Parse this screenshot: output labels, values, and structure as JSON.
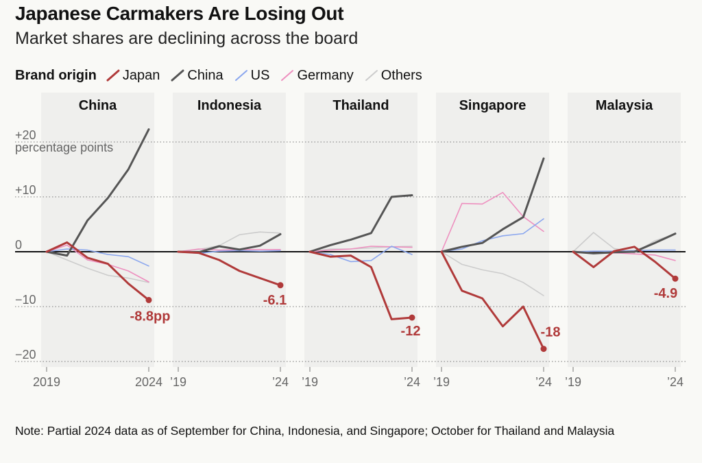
{
  "title": "Japanese Carmakers Are Losing Out",
  "subtitle": "Market shares are declining across the board",
  "legend": {
    "title": "Brand origin",
    "items": [
      {
        "name": "Japan",
        "color": "#b03a3a"
      },
      {
        "name": "China",
        "color": "#555555"
      },
      {
        "name": "US",
        "color": "#8aa6ee"
      },
      {
        "name": "Germany",
        "color": "#ee8fbf"
      },
      {
        "name": "Others",
        "color": "#cccccc"
      }
    ]
  },
  "note": "Note: Partial 2024 data as of September for China, Indonesia, and Singapore; October for Thailand and Malaysia",
  "chart_data": {
    "type": "line",
    "x": [
      "2019",
      "2020",
      "2021",
      "2022",
      "2023",
      "2024"
    ],
    "ylim": [
      -21,
      24
    ],
    "yticks": [
      {
        "value": 20,
        "label": "+20"
      },
      {
        "value": 10,
        "label": "+10"
      },
      {
        "value": 0,
        "label": "0"
      },
      {
        "value": -10,
        "label": "−10"
      },
      {
        "value": -20,
        "label": "−20"
      }
    ],
    "y_unit_label": "percentage points",
    "colors": {
      "Japan": "#b03a3a",
      "China": "#555555",
      "US": "#8aa6ee",
      "Germany": "#ee8fbf",
      "Others": "#cccccc"
    },
    "panels": [
      {
        "name": "China",
        "x_labels": [
          "2019",
          "2024"
        ],
        "end_label": "-8.8pp",
        "series": [
          {
            "name": "Others",
            "values": [
              0,
              -1.5,
              -3,
              -4.3,
              -4.8,
              -5.6
            ]
          },
          {
            "name": "Germany",
            "values": [
              0,
              1.2,
              -1.5,
              -2.3,
              -3.5,
              -5.5
            ]
          },
          {
            "name": "US",
            "values": [
              0,
              0.5,
              0.3,
              -0.5,
              -0.9,
              -2.6
            ]
          },
          {
            "name": "China",
            "values": [
              0,
              -0.7,
              5.7,
              9.8,
              15,
              22.3
            ]
          },
          {
            "name": "Japan",
            "values": [
              0,
              1.7,
              -1.1,
              -2.2,
              -5.8,
              -8.8
            ]
          }
        ]
      },
      {
        "name": "Indonesia",
        "x_labels": [
          "’19",
          "’24"
        ],
        "end_label": "-6.1",
        "series": [
          {
            "name": "Others",
            "values": [
              0,
              0.4,
              1.1,
              3.1,
              3.6,
              3.4
            ]
          },
          {
            "name": "Germany",
            "values": [
              0,
              0.5,
              0.3,
              0.4,
              0.4,
              0.4
            ]
          },
          {
            "name": "US",
            "values": [
              0,
              -0.3,
              0.1,
              0.2,
              0.1,
              0.2
            ]
          },
          {
            "name": "China",
            "values": [
              0,
              -0.1,
              1,
              0.4,
              1.1,
              3.2
            ]
          },
          {
            "name": "Japan",
            "values": [
              0,
              -0.2,
              -1.5,
              -3.5,
              -4.8,
              -6.1
            ]
          }
        ]
      },
      {
        "name": "Thailand",
        "x_labels": [
          "’19",
          "’24"
        ],
        "end_label": "-12",
        "series": [
          {
            "name": "Others",
            "values": [
              0,
              0.5,
              0.5,
              0.7,
              0.9,
              1
            ]
          },
          {
            "name": "Germany",
            "values": [
              0,
              0.3,
              0.5,
              1,
              0.9,
              0.8
            ]
          },
          {
            "name": "US",
            "values": [
              0,
              -0.5,
              -1.8,
              -1.6,
              1,
              -0.5
            ]
          },
          {
            "name": "China",
            "values": [
              0,
              1.2,
              2.2,
              3.4,
              10,
              10.3
            ]
          },
          {
            "name": "Japan",
            "values": [
              0,
              -0.9,
              -0.7,
              -2.8,
              -12.3,
              -12
            ]
          }
        ]
      },
      {
        "name": "Singapore",
        "x_labels": [
          "’19",
          "’24"
        ],
        "end_label": "-18",
        "series": [
          {
            "name": "Others",
            "values": [
              0,
              -2.3,
              -3.3,
              -4,
              -5.6,
              -8
            ]
          },
          {
            "name": "Germany",
            "values": [
              0,
              8.8,
              8.7,
              10.8,
              6.4,
              3.7
            ]
          },
          {
            "name": "US",
            "values": [
              0,
              0.5,
              2,
              2.9,
              3.3,
              6
            ]
          },
          {
            "name": "China",
            "values": [
              0,
              0.9,
              1.6,
              4.1,
              6.3,
              17
            ]
          },
          {
            "name": "Japan",
            "values": [
              0,
              -7.1,
              -8.5,
              -13.6,
              -10,
              -17.7
            ]
          }
        ]
      },
      {
        "name": "Malaysia",
        "x_labels": [
          "’19",
          "’24"
        ],
        "end_label": "-4.9",
        "series": [
          {
            "name": "Others",
            "values": [
              0,
              3.5,
              0.6,
              -0.2,
              2,
              3.2
            ]
          },
          {
            "name": "Germany",
            "values": [
              0,
              -0.2,
              -0.2,
              -0.4,
              -0.6,
              -1.6
            ]
          },
          {
            "name": "US",
            "values": [
              0,
              0.1,
              0.1,
              0.2,
              0.3,
              0.3
            ]
          },
          {
            "name": "China",
            "values": [
              0,
              -0.3,
              -0.1,
              0,
              1.6,
              3.3
            ]
          },
          {
            "name": "Japan",
            "values": [
              0,
              -2.8,
              0.1,
              0.9,
              -1.8,
              -4.9
            ]
          }
        ]
      }
    ]
  }
}
